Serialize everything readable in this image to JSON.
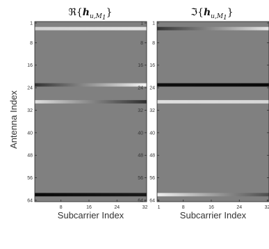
{
  "chart_data": [
    {
      "type": "heatmap",
      "title": "ℜ{",
      "title_vector": "h",
      "title_subscript": "u,",
      "title_set": "M",
      "title_set_index": "1",
      "title_close": "}",
      "xlabel": "Subcarrier Index",
      "ylabel": "Antenna Index",
      "x_ticks": [
        8,
        16,
        24,
        32
      ],
      "y_ticks": [
        1,
        8,
        16,
        24,
        32,
        40,
        48,
        56,
        64
      ],
      "xlim": [
        1,
        32
      ],
      "ylim": [
        1,
        64
      ],
      "background_level": 0.5,
      "bands": [
        {
          "antenna": 3,
          "start": 0.82,
          "end": 0.9
        },
        {
          "antenna": 23,
          "start": 0.2,
          "end": 0.96
        },
        {
          "antenna": 29,
          "start": 0.88,
          "end": 0.18
        },
        {
          "antenna": 62,
          "start": 0.04,
          "end": 0.1
        }
      ]
    },
    {
      "type": "heatmap",
      "title": "ℑ{",
      "title_vector": "h",
      "title_subscript": "u,",
      "title_set": "M",
      "title_set_index": "1",
      "title_close": "}",
      "xlabel": "Subcarrier Index",
      "ylabel": "",
      "x_ticks": [
        1,
        8,
        16,
        24,
        32
      ],
      "y_ticks": [
        1,
        8,
        16,
        24,
        32,
        40,
        48,
        56,
        64
      ],
      "xlim": [
        1,
        32
      ],
      "ylim": [
        1,
        64
      ],
      "background_level": 0.5,
      "bands": [
        {
          "antenna": 3,
          "start": 0.2,
          "end": 0.9
        },
        {
          "antenna": 23,
          "start": 0.06,
          "end": 0.04
        },
        {
          "antenna": 29,
          "start": 0.88,
          "end": 0.84
        },
        {
          "antenna": 62,
          "start": 0.94,
          "end": 0.3
        }
      ]
    }
  ],
  "colormap": "gray"
}
